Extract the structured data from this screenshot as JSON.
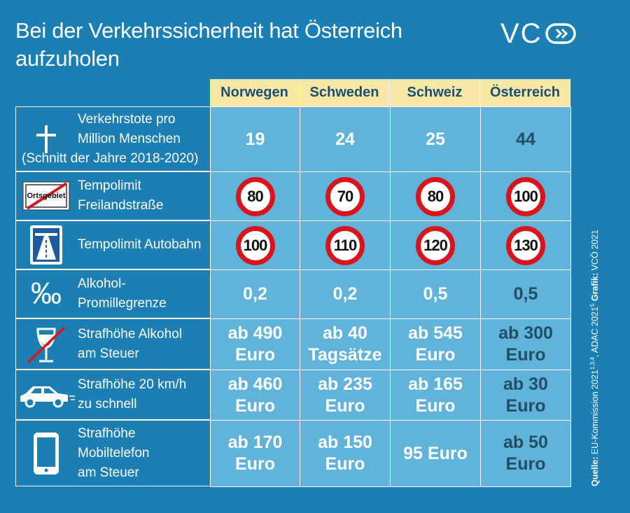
{
  "title": [
    "Bei der Verkehrssicherheit hat Österreich",
    "aufzuholen"
  ],
  "logo": "VC",
  "table": {
    "columns": [
      "Norwegen",
      "Schweden",
      "Schweiz",
      "Österreich"
    ],
    "rows": [
      {
        "label": [
          "Verkehrstote pro",
          "Million Menschen",
          "(Schnitt der Jahre 2018-2020)"
        ],
        "cells": [
          [
            "19"
          ],
          [
            "24"
          ],
          [
            "25"
          ],
          [
            "44"
          ]
        ]
      },
      {
        "label": [
          "Tempolimit",
          "Freilandstraße"
        ],
        "icon_text": "Ortsgebiet",
        "cells": [
          [
            "80"
          ],
          [
            "70"
          ],
          [
            "80"
          ],
          [
            "100"
          ]
        ]
      },
      {
        "label": [
          "Tempolimit Autobahn"
        ],
        "cells": [
          [
            "100"
          ],
          [
            "110"
          ],
          [
            "120"
          ],
          [
            "130"
          ]
        ]
      },
      {
        "label": [
          "Alkohol-",
          "Promillegrenze"
        ],
        "icon_text": "‰",
        "cells": [
          [
            "0,2"
          ],
          [
            "0,2"
          ],
          [
            "0,5"
          ],
          [
            "0,5"
          ]
        ]
      },
      {
        "label": [
          "Strafhöhe Alkohol",
          "am Steuer"
        ],
        "cells": [
          [
            "ab 490",
            "Euro"
          ],
          [
            "ab 40",
            "Tagsätze"
          ],
          [
            "ab 545",
            "Euro"
          ],
          [
            "ab 300",
            "Euro"
          ]
        ]
      },
      {
        "label": [
          "Strafhöhe 20 km/h",
          "zu schnell"
        ],
        "cells": [
          [
            "ab 460",
            "Euro"
          ],
          [
            "ab 235",
            "Euro"
          ],
          [
            "ab 165",
            "Euro"
          ],
          [
            "ab 30",
            "Euro"
          ]
        ]
      },
      {
        "label": [
          "Strafhöhe",
          "Mobiltelefon",
          "am Steuer"
        ],
        "cells": [
          [
            "ab 170",
            "Euro"
          ],
          [
            "ab 150",
            "Euro"
          ],
          [
            "95 Euro"
          ],
          [
            "ab 50",
            "Euro"
          ]
        ]
      }
    ]
  },
  "source": {
    "label": "Quelle:",
    "text1": " EU-Kommission 2021",
    "sup1": "1,3,4",
    "text2": ", ADAC 2021",
    "sup2": "5",
    "credit_label": " Grafik:",
    "credit": " VCÖ 2021"
  }
}
